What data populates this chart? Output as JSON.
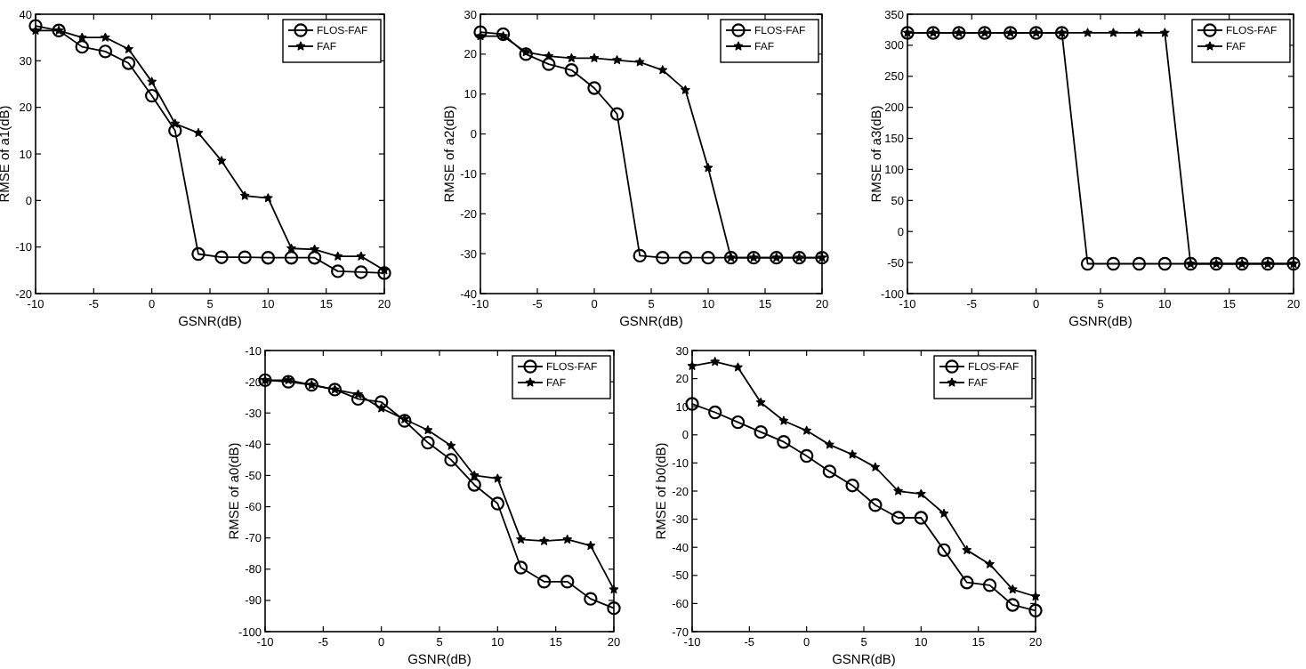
{
  "chart_data": [
    {
      "type": "line",
      "xlabel": "GSNR(dB)",
      "ylabel": "RMSE of a1(dB)",
      "x": [
        -10,
        -8,
        -6,
        -4,
        -2,
        0,
        2,
        4,
        6,
        8,
        10,
        12,
        14,
        16,
        18,
        20
      ],
      "xlim": [
        -10,
        20
      ],
      "xticks": [
        -10,
        -5,
        0,
        5,
        10,
        15,
        20
      ],
      "ylim": [
        -20,
        40
      ],
      "yticks": [
        -20,
        -10,
        0,
        10,
        20,
        30,
        40
      ],
      "legend": "top right",
      "grid": false,
      "series": [
        {
          "name": "FLOS-FAF",
          "color": "#000000",
          "marker": "circle",
          "values": [
            37.5,
            36.5,
            33,
            32,
            29.5,
            22.5,
            15,
            -11.5,
            -12.2,
            -12.2,
            -12.3,
            -12.3,
            -12.3,
            -15.2,
            -15.4,
            -15.6
          ]
        },
        {
          "name": "FAF",
          "color": "#000000",
          "marker": "star",
          "values": [
            36.5,
            36.5,
            35,
            35,
            32.5,
            25.5,
            16.5,
            14.5,
            8.5,
            1,
            0.5,
            -10.3,
            -10.5,
            -12,
            -12,
            -15
          ]
        }
      ]
    },
    {
      "type": "line",
      "xlabel": "GSNR(dB)",
      "ylabel": "RMSE of a2(dB)",
      "x": [
        -10,
        -8,
        -6,
        -4,
        -2,
        0,
        2,
        4,
        6,
        8,
        10,
        12,
        14,
        16,
        18,
        20
      ],
      "xlim": [
        -10,
        20
      ],
      "xticks": [
        -10,
        -5,
        0,
        5,
        10,
        15,
        20
      ],
      "ylim": [
        -40,
        30
      ],
      "yticks": [
        -40,
        -30,
        -20,
        -10,
        0,
        10,
        20,
        30
      ],
      "legend": "top right",
      "grid": false,
      "series": [
        {
          "name": "FLOS-FAF",
          "color": "#000000",
          "marker": "circle",
          "values": [
            25.5,
            25,
            20,
            17.5,
            16,
            11.5,
            5,
            -30.5,
            -31,
            -31,
            -31,
            -31,
            -31,
            -31,
            -31,
            -31
          ]
        },
        {
          "name": "FAF",
          "color": "#000000",
          "marker": "star",
          "values": [
            24.5,
            24.5,
            20.5,
            19.5,
            19,
            19,
            18.5,
            18,
            16,
            11,
            -8.5,
            -31,
            -31,
            -31,
            -31,
            -31
          ]
        }
      ]
    },
    {
      "type": "line",
      "xlabel": "GSNR(dB)",
      "ylabel": "RMSE of a3(dB)",
      "x": [
        -10,
        -8,
        -6,
        -4,
        -2,
        0,
        2,
        4,
        6,
        8,
        10,
        12,
        14,
        16,
        18,
        20
      ],
      "xlim": [
        -10,
        20
      ],
      "xticks": [
        -10,
        -5,
        0,
        5,
        10,
        15,
        20
      ],
      "ylim": [
        -100,
        350
      ],
      "yticks": [
        -100,
        -50,
        0,
        50,
        100,
        150,
        200,
        250,
        300,
        350
      ],
      "legend": "top right",
      "grid": false,
      "series": [
        {
          "name": "FLOS-FAF",
          "color": "#000000",
          "marker": "circle",
          "values": [
            320,
            320,
            320,
            320,
            320,
            320,
            320,
            -52,
            -52,
            -52,
            -52,
            -52,
            -52,
            -52,
            -52,
            -52
          ]
        },
        {
          "name": "FAF",
          "color": "#000000",
          "marker": "star",
          "values": [
            320,
            320,
            320,
            320,
            320,
            320,
            320,
            320,
            320,
            320,
            320,
            -52,
            -52,
            -52,
            -52,
            -52
          ]
        }
      ]
    },
    {
      "type": "line",
      "xlabel": "GSNR(dB)",
      "ylabel": "RMSE of a0(dB)",
      "x": [
        -10,
        -8,
        -6,
        -4,
        -2,
        0,
        2,
        4,
        6,
        8,
        10,
        12,
        14,
        16,
        18,
        20
      ],
      "xlim": [
        -10,
        20
      ],
      "xticks": [
        -10,
        -5,
        0,
        5,
        10,
        15,
        20
      ],
      "ylim": [
        -100,
        -10
      ],
      "yticks": [
        -100,
        -90,
        -80,
        -70,
        -60,
        -50,
        -40,
        -30,
        -20,
        -10
      ],
      "legend": "top right",
      "grid": false,
      "series": [
        {
          "name": "FLOS-FAF",
          "color": "#000000",
          "marker": "circle",
          "values": [
            -19.5,
            -20,
            -21,
            -22.5,
            -25.5,
            -26.5,
            -32.5,
            -39.5,
            -45,
            -53,
            -59,
            -79.5,
            -84,
            -84,
            -89.5,
            -92.5
          ]
        },
        {
          "name": "FAF",
          "color": "#000000",
          "marker": "star",
          "values": [
            -19.5,
            -19.5,
            -21,
            -22.5,
            -24,
            -28.5,
            -32,
            -35.5,
            -40.5,
            -50,
            -51,
            -70.5,
            -71,
            -70.5,
            -72.5,
            -86.5
          ]
        }
      ]
    },
    {
      "type": "line",
      "xlabel": "GSNR(dB)",
      "ylabel": "RMSE of b0(dB)",
      "x": [
        -10,
        -8,
        -6,
        -4,
        -2,
        0,
        2,
        4,
        6,
        8,
        10,
        12,
        14,
        16,
        18,
        20
      ],
      "xlim": [
        -10,
        20
      ],
      "xticks": [
        -10,
        -5,
        0,
        5,
        10,
        15,
        20
      ],
      "ylim": [
        -70,
        30
      ],
      "yticks": [
        -70,
        -60,
        -50,
        -40,
        -30,
        -20,
        -10,
        0,
        10,
        20,
        30
      ],
      "legend": "top right",
      "grid": false,
      "series": [
        {
          "name": "FLOS-FAF",
          "color": "#000000",
          "marker": "circle",
          "values": [
            11,
            8,
            4.5,
            1,
            -2.5,
            -7.5,
            -13,
            -18,
            -25,
            -29.5,
            -29.5,
            -41,
            -52.5,
            -53.5,
            -60.5,
            -62.5
          ]
        },
        {
          "name": "FAF",
          "color": "#000000",
          "marker": "star",
          "values": [
            24.5,
            26,
            24,
            11.5,
            5,
            1.5,
            -3.5,
            -7,
            -11.5,
            -20,
            -21,
            -28,
            -41,
            -46,
            -55,
            -57.5
          ]
        }
      ]
    }
  ]
}
